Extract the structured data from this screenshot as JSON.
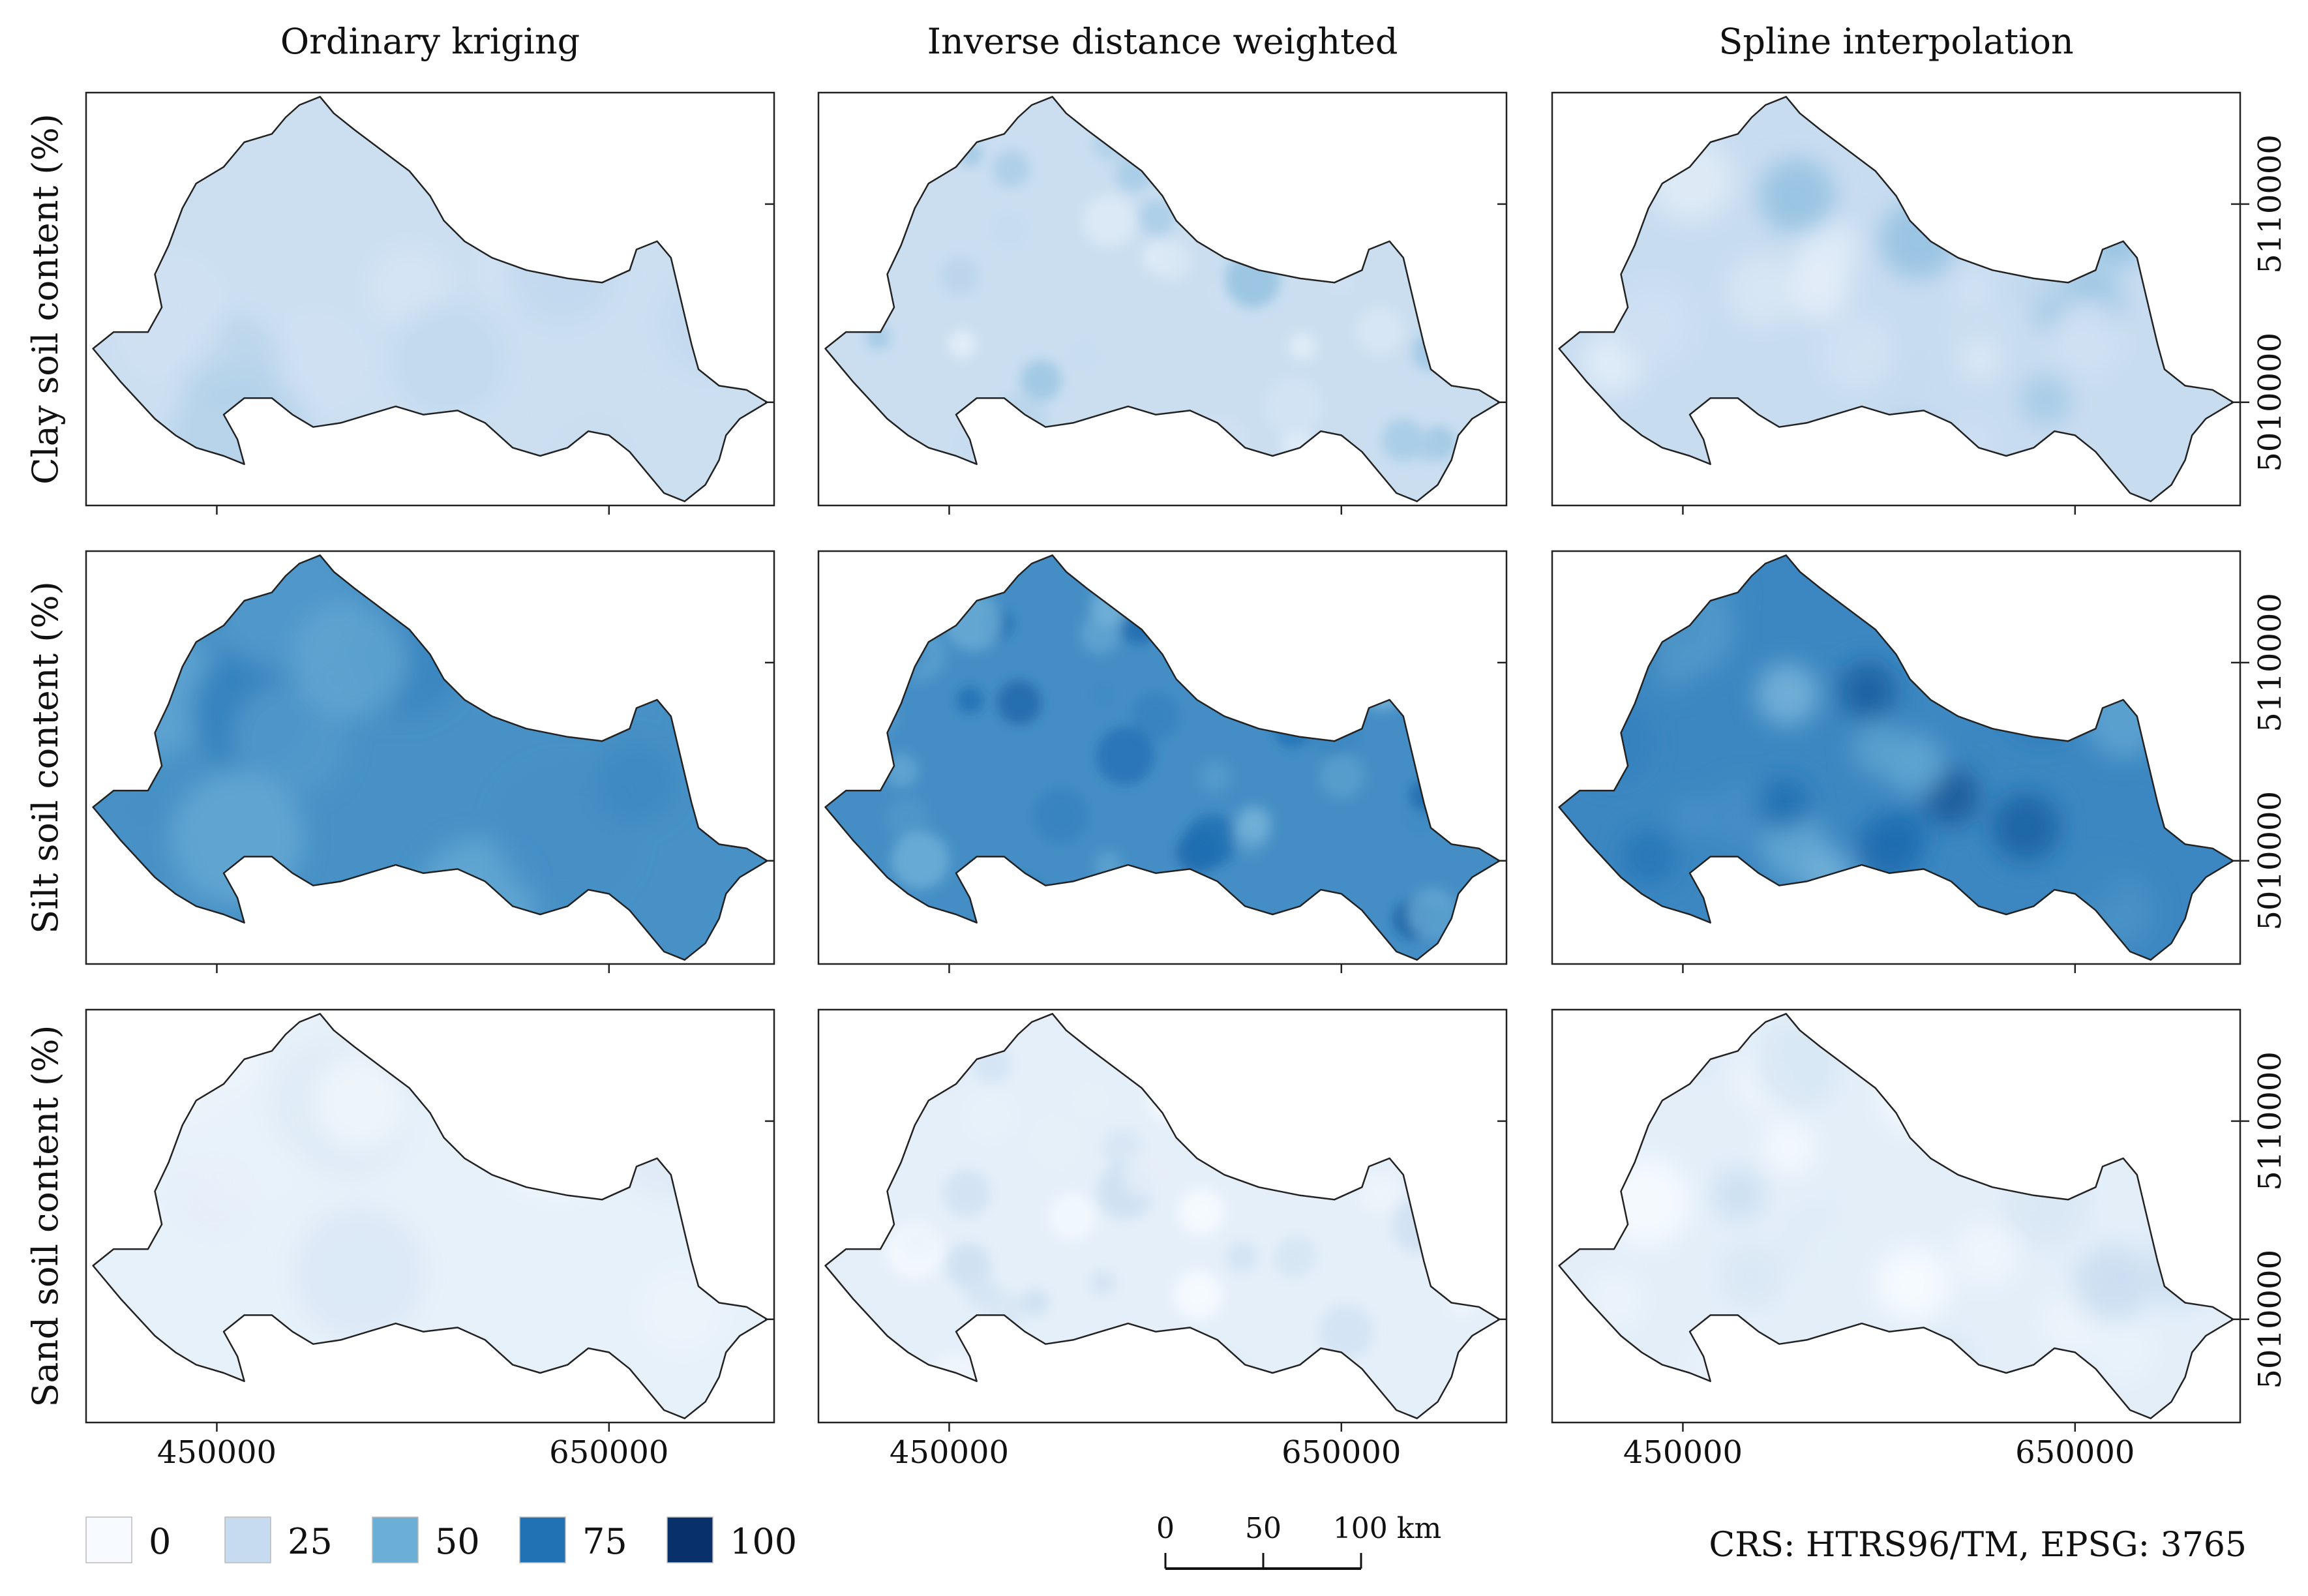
{
  "columns": [
    {
      "title": "Ordinary kriging"
    },
    {
      "title": "Inverse distance weighted"
    },
    {
      "title": "Spline interpolation"
    }
  ],
  "rows": [
    {
      "label": "Clay soil content (%)",
      "base_value": 22,
      "variance": 12
    },
    {
      "label": "Silt soil content (%)",
      "base_value": 62,
      "variance": 14
    },
    {
      "label": "Sand soil content (%)",
      "base_value": 8,
      "variance": 10
    }
  ],
  "axes": {
    "x_ticks": [
      "450000",
      "650000"
    ],
    "y_ticks": [
      "5110000",
      "5010000"
    ]
  },
  "legend": {
    "title": "",
    "items": [
      {
        "label": "0",
        "value": 0,
        "color": "#f7fbff"
      },
      {
        "label": "25",
        "value": 25,
        "color": "#c6dbef"
      },
      {
        "label": "50",
        "value": 50,
        "color": "#6baed6"
      },
      {
        "label": "75",
        "value": 75,
        "color": "#2171b5"
      },
      {
        "label": "100",
        "value": 100,
        "color": "#08306b"
      }
    ]
  },
  "scalebar": {
    "labels": [
      "0",
      "50",
      "100 km"
    ]
  },
  "crs_label": "CRS: HTRS96/TM, EPSG: 3765",
  "colors": {
    "outline": "#222222",
    "frame": "#222222"
  },
  "chart_data": {
    "type": "heatmap",
    "title": "",
    "panels": [
      {
        "row": "Clay soil content (%)",
        "col": "Ordinary kriging",
        "mean_percent": 22
      },
      {
        "row": "Clay soil content (%)",
        "col": "Inverse distance weighted",
        "mean_percent": 23
      },
      {
        "row": "Clay soil content (%)",
        "col": "Spline interpolation",
        "mean_percent": 24
      },
      {
        "row": "Silt soil content (%)",
        "col": "Ordinary kriging",
        "mean_percent": 62
      },
      {
        "row": "Silt soil content (%)",
        "col": "Inverse distance weighted",
        "mean_percent": 63
      },
      {
        "row": "Silt soil content (%)",
        "col": "Spline interpolation",
        "mean_percent": 66
      },
      {
        "row": "Sand soil content (%)",
        "col": "Ordinary kriging",
        "mean_percent": 8
      },
      {
        "row": "Sand soil content (%)",
        "col": "Inverse distance weighted",
        "mean_percent": 9
      },
      {
        "row": "Sand soil content (%)",
        "col": "Spline interpolation",
        "mean_percent": 10
      }
    ],
    "value_range": [
      0,
      100
    ],
    "x_ticks": [
      450000,
      650000
    ],
    "y_ticks": [
      5110000,
      5010000
    ]
  }
}
